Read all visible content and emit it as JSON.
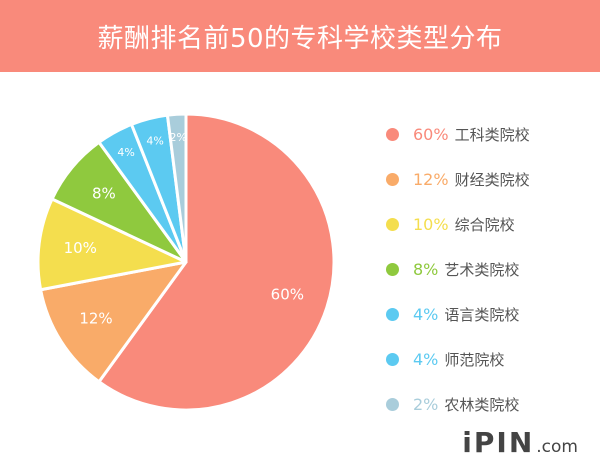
{
  "header": {
    "title": "薪酬排名前50的专科学校类型分布"
  },
  "chart_data": {
    "type": "pie",
    "title": "薪酬排名前50的专科学校类型分布",
    "legend_position": "right",
    "slices": [
      {
        "label": "工科类院校",
        "value": 60,
        "pct_label": "60%",
        "color": "#f98a7b"
      },
      {
        "label": "财经类院校",
        "value": 12,
        "pct_label": "12%",
        "color": "#f9ab69"
      },
      {
        "label": "综合院校",
        "value": 10,
        "pct_label": "10%",
        "color": "#f4de4e"
      },
      {
        "label": "艺术类院校",
        "value": 8,
        "pct_label": "8%",
        "color": "#8fc93e"
      },
      {
        "label": "语言类院校",
        "value": 4,
        "pct_label": "4%",
        "color": "#5ccaf1"
      },
      {
        "label": "师范院校",
        "value": 4,
        "pct_label": "4%",
        "color": "#5ccaf1"
      },
      {
        "label": "农林类院校",
        "value": 2,
        "pct_label": "2%",
        "color": "#a9cddb"
      }
    ]
  },
  "watermark": {
    "brand": "iPIN",
    "suffix": ".com"
  }
}
